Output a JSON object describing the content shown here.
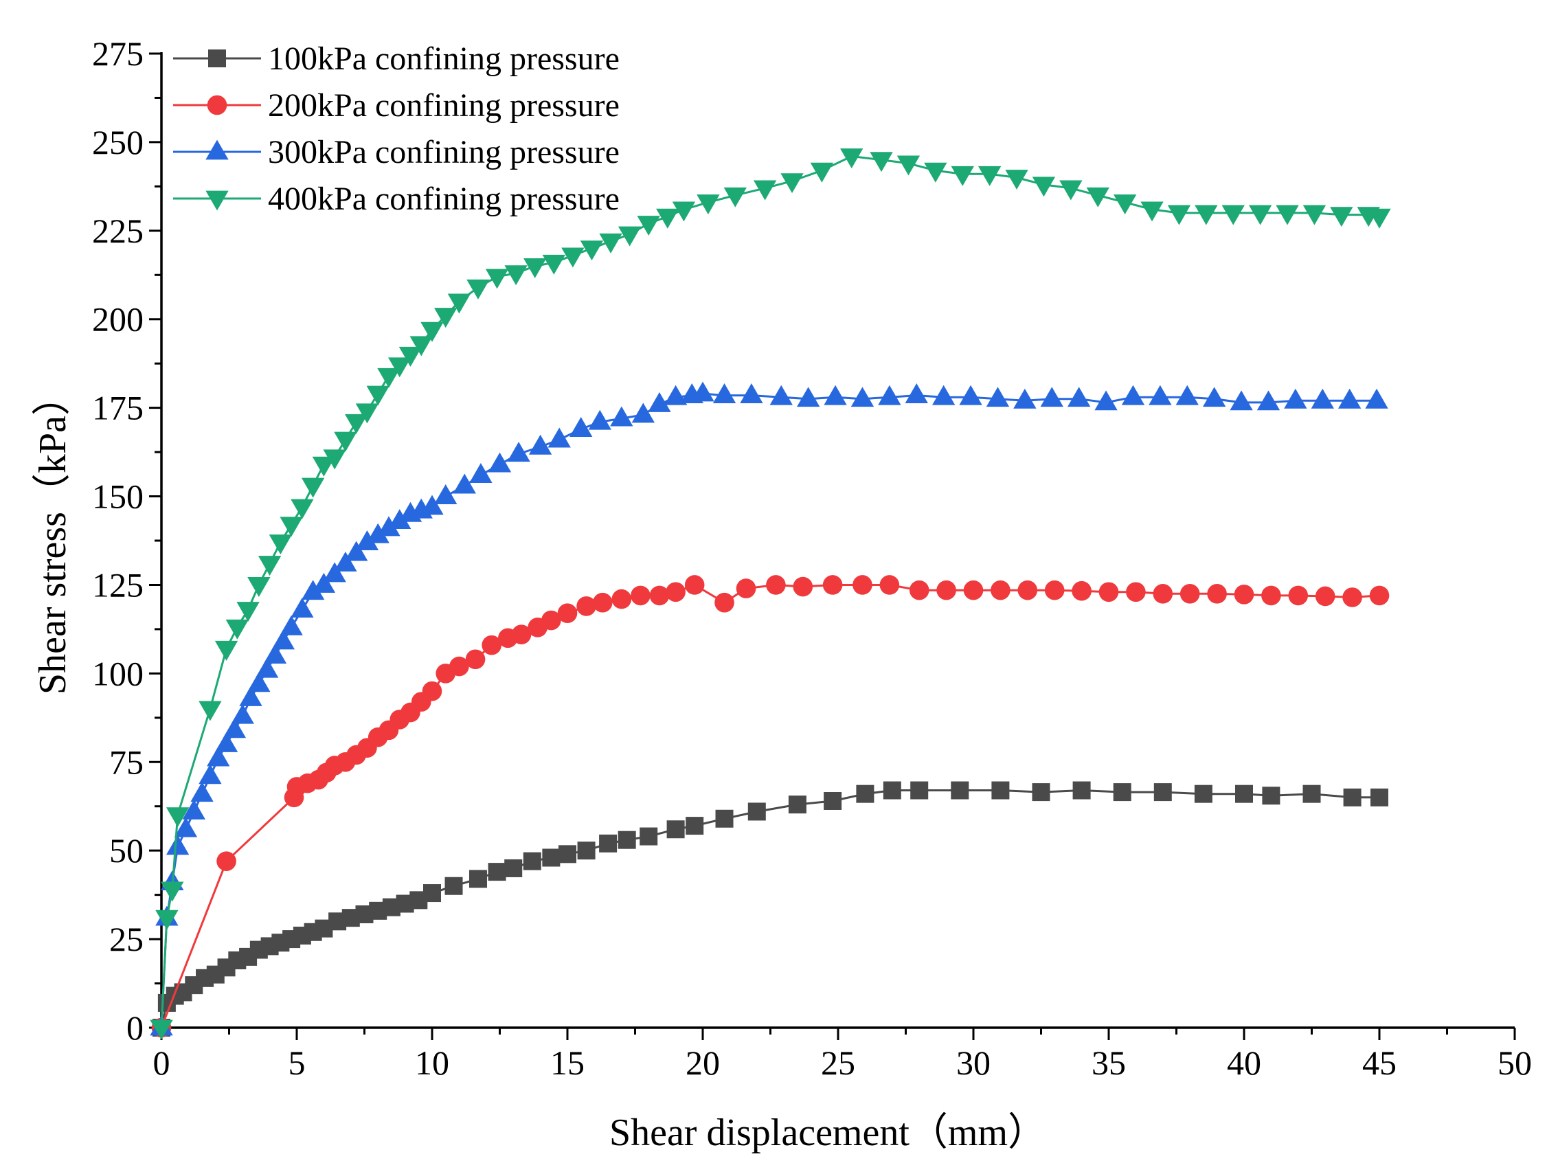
{
  "chart_data": {
    "type": "line",
    "title": "",
    "xlabel": "Shear displacement（mm）",
    "ylabel": "Shear stress（kPa）",
    "xlim": [
      0,
      50
    ],
    "ylim": [
      0,
      275
    ],
    "xticks": [
      0,
      5,
      10,
      15,
      20,
      25,
      30,
      35,
      40,
      45,
      50
    ],
    "yticks": [
      0,
      25,
      50,
      75,
      100,
      125,
      150,
      175,
      200,
      225,
      250,
      275
    ],
    "grid": false,
    "legend_position": "top-left",
    "series": [
      {
        "name": "100kPa confining pressure",
        "color": "#4a4a4a",
        "marker": "square",
        "points": [
          [
            0,
            0
          ],
          [
            0.2,
            7
          ],
          [
            0.5,
            9
          ],
          [
            0.8,
            10
          ],
          [
            1.2,
            12
          ],
          [
            1.6,
            14
          ],
          [
            2,
            15
          ],
          [
            2.4,
            17
          ],
          [
            2.8,
            19
          ],
          [
            3.2,
            20
          ],
          [
            3.6,
            22
          ],
          [
            4,
            23
          ],
          [
            4.4,
            24
          ],
          [
            4.8,
            25
          ],
          [
            5.2,
            26
          ],
          [
            5.6,
            27
          ],
          [
            6,
            28
          ],
          [
            6.5,
            30
          ],
          [
            7,
            31
          ],
          [
            7.5,
            32
          ],
          [
            8,
            33
          ],
          [
            8.5,
            34
          ],
          [
            9,
            35
          ],
          [
            9.5,
            36
          ],
          [
            10,
            38
          ],
          [
            10.8,
            40
          ],
          [
            11.7,
            42
          ],
          [
            12.4,
            44
          ],
          [
            13,
            45
          ],
          [
            13.7,
            47
          ],
          [
            14.4,
            48
          ],
          [
            15,
            49
          ],
          [
            15.7,
            50
          ],
          [
            16.5,
            52
          ],
          [
            17.2,
            53
          ],
          [
            18,
            54
          ],
          [
            19,
            56
          ],
          [
            19.7,
            57
          ],
          [
            20.8,
            59
          ],
          [
            22,
            61
          ],
          [
            23.5,
            63
          ],
          [
            24.8,
            64
          ],
          [
            26,
            66
          ],
          [
            27,
            67
          ],
          [
            28,
            67
          ],
          [
            29.5,
            67
          ],
          [
            31,
            67
          ],
          [
            32.5,
            66.5
          ],
          [
            34,
            67
          ],
          [
            35.5,
            66.5
          ],
          [
            37,
            66.5
          ],
          [
            38.5,
            66
          ],
          [
            40,
            66
          ],
          [
            41,
            65.5
          ],
          [
            42.5,
            66
          ],
          [
            44,
            65
          ],
          [
            45,
            65
          ]
        ]
      },
      {
        "name": "200kPa confining pressure",
        "color": "#f0393c",
        "marker": "circle",
        "points": [
          [
            0,
            0
          ],
          [
            2.4,
            47
          ],
          [
            4.9,
            65
          ],
          [
            5,
            68
          ],
          [
            5.4,
            69
          ],
          [
            5.8,
            70
          ],
          [
            6.1,
            72
          ],
          [
            6.4,
            74
          ],
          [
            6.8,
            75
          ],
          [
            7.2,
            77
          ],
          [
            7.6,
            79
          ],
          [
            8,
            82
          ],
          [
            8.4,
            84
          ],
          [
            8.8,
            87
          ],
          [
            9.2,
            89
          ],
          [
            9.6,
            92
          ],
          [
            10,
            95
          ],
          [
            10.5,
            100
          ],
          [
            11,
            102
          ],
          [
            11.6,
            104
          ],
          [
            12.2,
            108
          ],
          [
            12.8,
            110
          ],
          [
            13.3,
            111
          ],
          [
            13.9,
            113
          ],
          [
            14.4,
            115
          ],
          [
            15,
            117
          ],
          [
            15.7,
            119
          ],
          [
            16.3,
            120
          ],
          [
            17,
            121
          ],
          [
            17.7,
            122
          ],
          [
            18.4,
            122
          ],
          [
            19,
            123
          ],
          [
            19.7,
            125
          ],
          [
            20.8,
            120
          ],
          [
            21.6,
            124
          ],
          [
            22.7,
            125
          ],
          [
            23.7,
            124.5
          ],
          [
            24.8,
            125
          ],
          [
            25.9,
            125
          ],
          [
            26.9,
            125
          ],
          [
            28,
            123.5
          ],
          [
            29,
            123.5
          ],
          [
            30,
            123.5
          ],
          [
            31,
            123.5
          ],
          [
            32,
            123.5
          ],
          [
            33,
            123.5
          ],
          [
            34,
            123.3
          ],
          [
            35,
            123
          ],
          [
            36,
            123
          ],
          [
            37,
            122.5
          ],
          [
            38,
            122.5
          ],
          [
            39,
            122.5
          ],
          [
            40,
            122.3
          ],
          [
            41,
            122
          ],
          [
            42,
            122
          ],
          [
            43,
            121.8
          ],
          [
            44,
            121.5
          ],
          [
            45,
            122
          ]
        ]
      },
      {
        "name": "300kPa confining pressure",
        "color": "#2868df",
        "marker": "triangle-up",
        "points": [
          [
            0,
            0
          ],
          [
            0.2,
            31
          ],
          [
            0.4,
            41
          ],
          [
            0.6,
            51
          ],
          [
            0.9,
            56
          ],
          [
            1.2,
            61
          ],
          [
            1.5,
            66
          ],
          [
            1.8,
            71
          ],
          [
            2.1,
            76
          ],
          [
            2.4,
            80
          ],
          [
            2.7,
            84
          ],
          [
            3,
            88
          ],
          [
            3.3,
            93
          ],
          [
            3.6,
            97
          ],
          [
            3.9,
            101
          ],
          [
            4.2,
            105
          ],
          [
            4.5,
            109
          ],
          [
            4.8,
            113
          ],
          [
            5.2,
            118
          ],
          [
            5.6,
            123
          ],
          [
            6,
            125
          ],
          [
            6.4,
            128
          ],
          [
            6.8,
            131
          ],
          [
            7.2,
            134
          ],
          [
            7.6,
            137
          ],
          [
            8,
            139
          ],
          [
            8.4,
            141
          ],
          [
            8.8,
            143
          ],
          [
            9.2,
            145
          ],
          [
            9.6,
            146
          ],
          [
            10,
            147
          ],
          [
            10.5,
            150
          ],
          [
            11.2,
            153
          ],
          [
            11.8,
            156
          ],
          [
            12.5,
            159
          ],
          [
            13.2,
            162
          ],
          [
            14,
            164
          ],
          [
            14.7,
            166
          ],
          [
            15.5,
            169
          ],
          [
            16.2,
            171
          ],
          [
            17,
            172
          ],
          [
            17.8,
            173
          ],
          [
            18.4,
            176
          ],
          [
            19,
            178
          ],
          [
            19.6,
            178.5
          ],
          [
            20,
            179
          ],
          [
            20.8,
            178.5
          ],
          [
            21.8,
            178.5
          ],
          [
            22.9,
            178
          ],
          [
            23.9,
            177.5
          ],
          [
            24.9,
            178
          ],
          [
            25.9,
            177.5
          ],
          [
            26.9,
            178
          ],
          [
            27.9,
            178.5
          ],
          [
            28.9,
            178
          ],
          [
            29.9,
            178
          ],
          [
            30.9,
            177.5
          ],
          [
            31.9,
            177
          ],
          [
            32.9,
            177.5
          ],
          [
            33.9,
            177.5
          ],
          [
            34.9,
            176.5
          ],
          [
            35.9,
            178
          ],
          [
            36.9,
            178
          ],
          [
            37.9,
            178
          ],
          [
            38.9,
            177.5
          ],
          [
            39.9,
            176.5
          ],
          [
            40.9,
            176.5
          ],
          [
            41.9,
            177
          ],
          [
            42.9,
            177
          ],
          [
            43.9,
            177
          ],
          [
            44.9,
            177
          ]
        ]
      },
      {
        "name": "400kPa confining pressure",
        "color": "#1ca974",
        "marker": "triangle-down",
        "points": [
          [
            0,
            0
          ],
          [
            0.2,
            31
          ],
          [
            0.4,
            39
          ],
          [
            0.6,
            60
          ],
          [
            1.8,
            90
          ],
          [
            2.4,
            107
          ],
          [
            2.8,
            113
          ],
          [
            3.2,
            118
          ],
          [
            3.6,
            125
          ],
          [
            4,
            131
          ],
          [
            4.4,
            137
          ],
          [
            4.8,
            142
          ],
          [
            5.2,
            147
          ],
          [
            5.6,
            153
          ],
          [
            6,
            159
          ],
          [
            6.4,
            161
          ],
          [
            6.8,
            166
          ],
          [
            7.2,
            171
          ],
          [
            7.6,
            174
          ],
          [
            8,
            179
          ],
          [
            8.4,
            184
          ],
          [
            8.8,
            187
          ],
          [
            9.2,
            190
          ],
          [
            9.6,
            193
          ],
          [
            10,
            197
          ],
          [
            10.5,
            201
          ],
          [
            11,
            205
          ],
          [
            11.7,
            209
          ],
          [
            12.4,
            212
          ],
          [
            13.1,
            213
          ],
          [
            13.8,
            215
          ],
          [
            14.5,
            216
          ],
          [
            15.2,
            218
          ],
          [
            15.9,
            220
          ],
          [
            16.6,
            222
          ],
          [
            17.3,
            224
          ],
          [
            18,
            227
          ],
          [
            18.7,
            229
          ],
          [
            19.3,
            231
          ],
          [
            20.2,
            233
          ],
          [
            21.2,
            235
          ],
          [
            22.3,
            237
          ],
          [
            23.3,
            239
          ],
          [
            24.4,
            242
          ],
          [
            25.5,
            246
          ],
          [
            26.6,
            245
          ],
          [
            27.6,
            244
          ],
          [
            28.6,
            242
          ],
          [
            29.6,
            241
          ],
          [
            30.6,
            241
          ],
          [
            31.6,
            240
          ],
          [
            32.6,
            238
          ],
          [
            33.6,
            237
          ],
          [
            34.6,
            235
          ],
          [
            35.6,
            233
          ],
          [
            36.6,
            231
          ],
          [
            37.6,
            230
          ],
          [
            38.6,
            230
          ],
          [
            39.6,
            230
          ],
          [
            40.6,
            230
          ],
          [
            41.6,
            230
          ],
          [
            42.6,
            230
          ],
          [
            43.6,
            229.5
          ],
          [
            44.6,
            229.5
          ],
          [
            45,
            229
          ]
        ]
      }
    ]
  }
}
